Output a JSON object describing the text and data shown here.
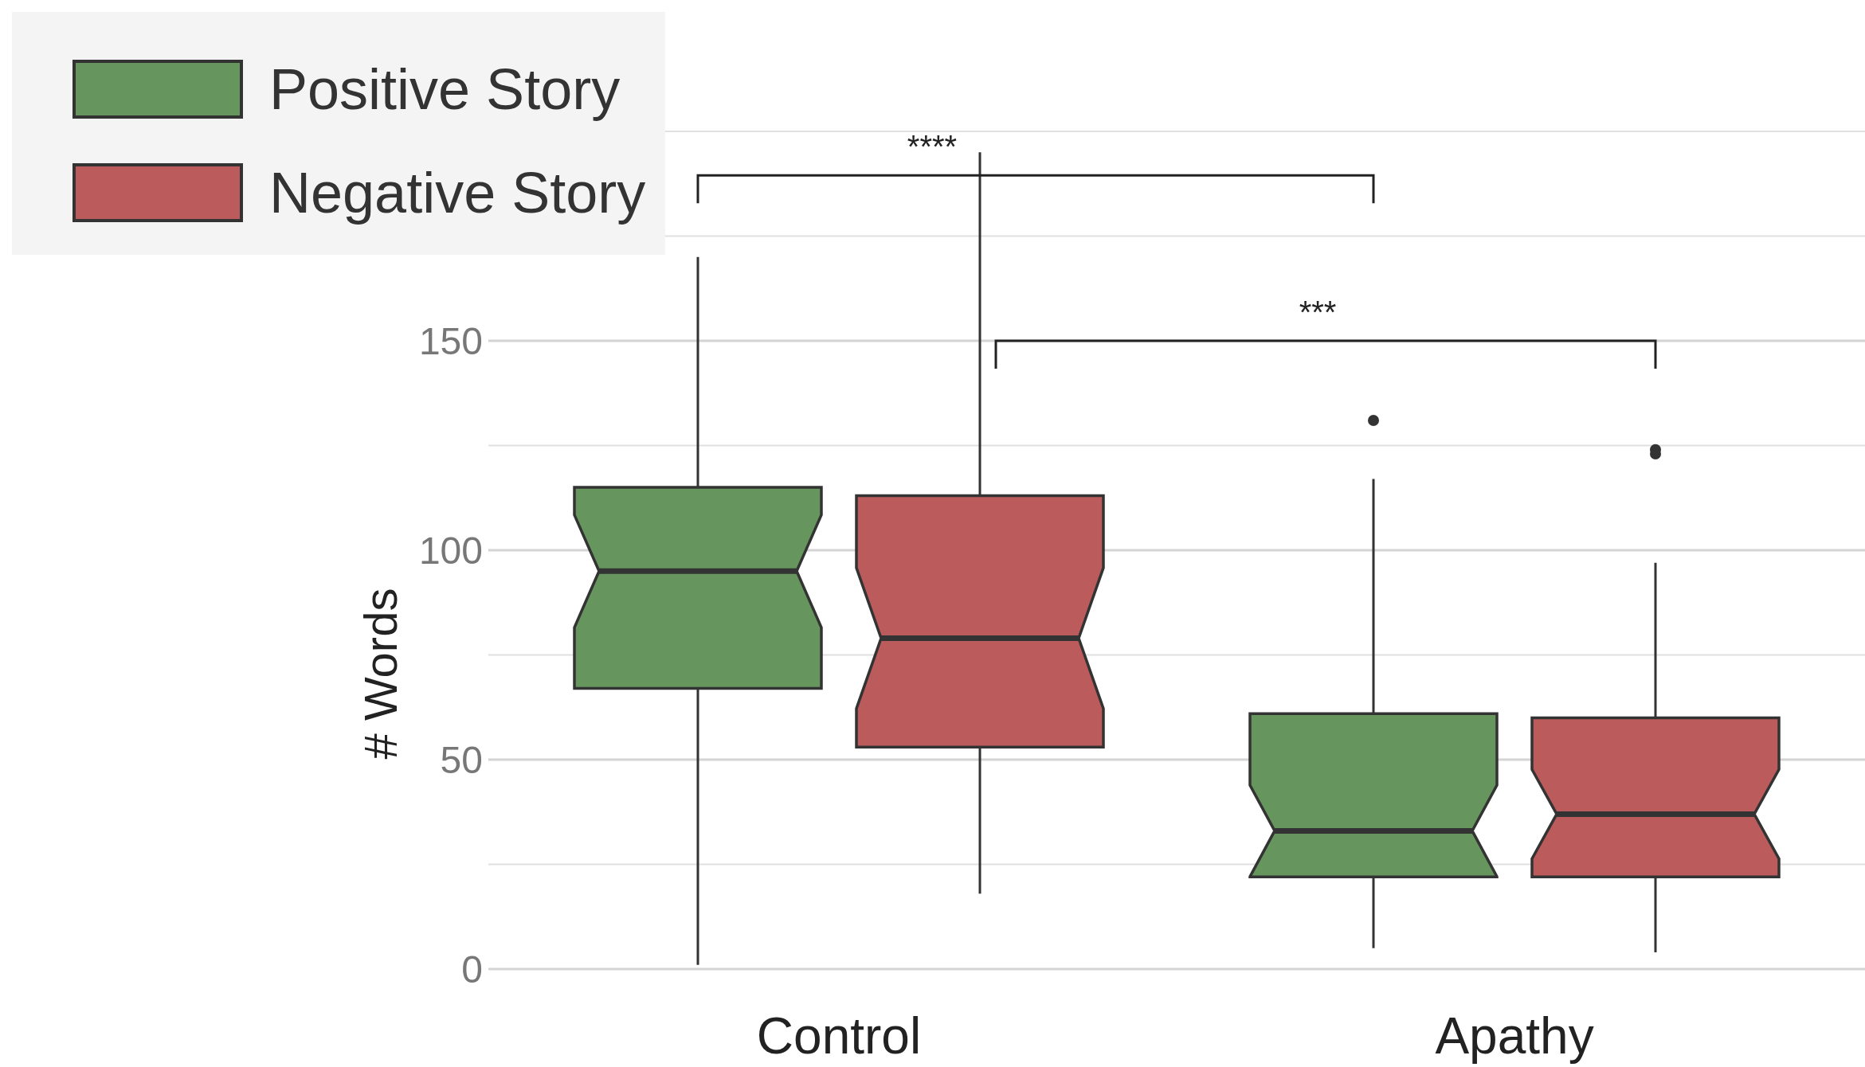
{
  "chart_data": {
    "type": "box",
    "categories": [
      "Control",
      "Apathy"
    ],
    "ylabel": "# Words",
    "series": [
      {
        "name": "Positive Story",
        "color": "#66965e",
        "boxes": [
          {
            "low": 1,
            "q1": 67,
            "median": 95,
            "q3": 115,
            "high": 170
          },
          {
            "low": 5,
            "q1": 22,
            "median": 33,
            "q3": 61,
            "high": 117,
            "outliers": [
              131
            ]
          }
        ]
      },
      {
        "name": "Negative Story",
        "color": "#bc5b5c",
        "boxes": [
          {
            "low": 18,
            "q1": 53,
            "median": 79,
            "q3": 113,
            "high": 195
          },
          {
            "low": 4,
            "q1": 22,
            "median": 37,
            "q3": 60,
            "high": 97,
            "outliers": [
              124,
              123
            ]
          }
        ]
      }
    ],
    "ylim": [
      0,
      200
    ],
    "yticks": [
      0,
      {
        "value": 25,
        "label": null
      },
      50,
      {
        "value": 75,
        "label": null
      },
      100,
      {
        "value": 125,
        "label": null
      },
      150,
      {
        "value": 175,
        "label": null
      },
      {
        "value": 200,
        "label": null
      }
    ],
    "grid": "y",
    "legend": "top left",
    "annotations": [
      "****",
      "***"
    ]
  }
}
